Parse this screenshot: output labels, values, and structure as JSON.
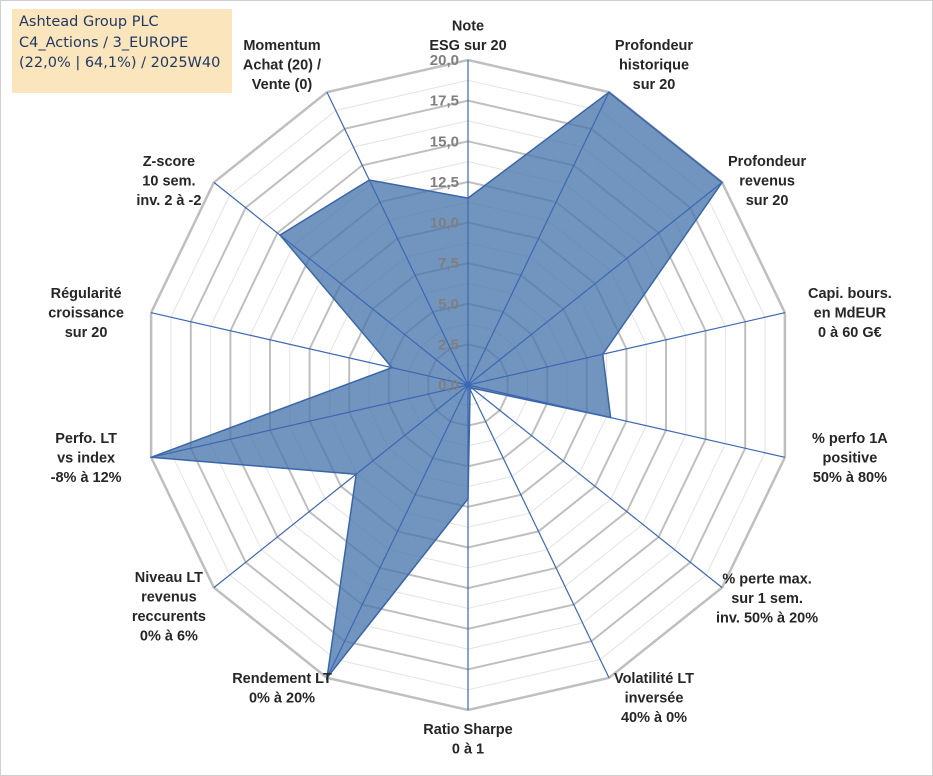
{
  "info_box": {
    "line1": "Ashtead Group PLC",
    "line2": "C4_Actions / 3_EUROPE",
    "line3": "(22,0% | 64,1%) / 2025W40"
  },
  "colors": {
    "fill": "#4a77ad",
    "outline": "#3a66a8",
    "spoke": "#3c67b3",
    "grid_major": "#bfbfbf",
    "grid_minor": "#e3e3e3",
    "tick_text": "#7f7f7f",
    "label_text": "#262626",
    "info_bg": "#fbe5bd",
    "info_text": "#1f3864"
  },
  "chart_data": {
    "type": "radar",
    "rmax": 20,
    "tick_step": 2.5,
    "tick_labels": [
      "0,0",
      "2,5",
      "5,0",
      "7,5",
      "10,0",
      "12,5",
      "15,0",
      "17,5",
      "20,0"
    ],
    "axes": [
      {
        "label": [
          "Note",
          "ESG sur 20"
        ],
        "value": 11.5
      },
      {
        "label": [
          "Profondeur",
          "historique",
          "sur 20"
        ],
        "value": 20
      },
      {
        "label": [
          "Profondeur",
          "revenus",
          "sur 20"
        ],
        "value": 20
      },
      {
        "label": [
          "Capi. bours.",
          "en MdEUR",
          "0 à 60 G€"
        ],
        "value": 8.5
      },
      {
        "label": [
          "% perfo 1A",
          "positive",
          "50% à 80%"
        ],
        "value": 9.0
      },
      {
        "label": [
          "% perte max.",
          "sur 1 sem.",
          "inv. 50% à 20%"
        ],
        "value": 0.3
      },
      {
        "label": [
          "Volatilité LT",
          "inversée",
          "40% à 0%"
        ],
        "value": 0.3
      },
      {
        "label": [
          "Ratio Sharpe",
          "0 à 1"
        ],
        "value": 7.0
      },
      {
        "label": [
          "Rendement LT",
          "0% à 20%"
        ],
        "value": 20
      },
      {
        "label": [
          "Niveau LT",
          "revenus",
          "reccurents",
          "0% à 6%"
        ],
        "value": 8.8
      },
      {
        "label": [
          "Perfo. LT",
          "vs index",
          "-8% à 12%"
        ],
        "value": 20
      },
      {
        "label": [
          "Régularité",
          "croissance",
          "sur 20"
        ],
        "value": 4.8
      },
      {
        "label": [
          "Z-score",
          "10 sem.",
          "inv. 2 à -2"
        ],
        "value": 14.8
      },
      {
        "label": [
          "Momentum",
          "Achat (20) /",
          "Vente (0)"
        ],
        "value": 14.0
      }
    ]
  }
}
